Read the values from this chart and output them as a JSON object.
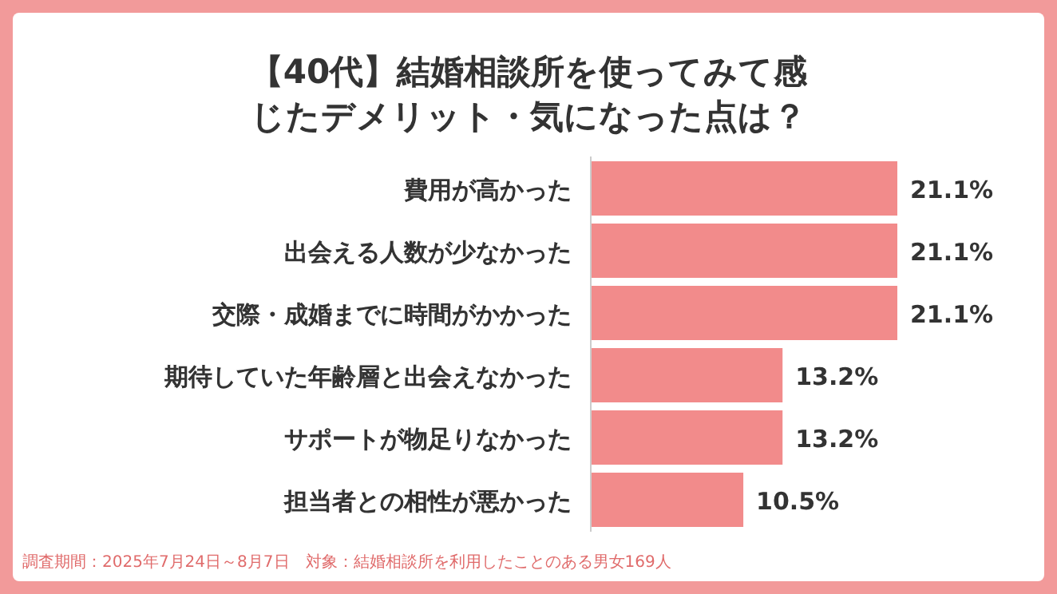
{
  "chart_data": {
    "type": "bar",
    "orientation": "horizontal",
    "title": "【40代】結婚相談所を使ってみて感じたデメリット・気になった点は？",
    "categories": [
      "費用が高かった",
      "出会える人数が少なかった",
      "交際・成婚までに時間がかかった",
      "期待していた年齢層と出会えなかった",
      "サポートが物足りなかった",
      "担当者との相性が悪かった"
    ],
    "series": [
      {
        "color": "#f28b8b",
        "values": [
          21.1,
          21.1,
          21.1,
          13.2,
          13.2,
          10.5
        ],
        "value_labels": [
          "21.1%",
          "21.1%",
          "21.1%",
          "13.2%",
          "13.2%",
          "10.5%"
        ]
      }
    ],
    "annotations": [
      "調査期間：2025年7月24日～8月7日　対象：結婚相談所を利用したことのある男女169人"
    ]
  }
}
